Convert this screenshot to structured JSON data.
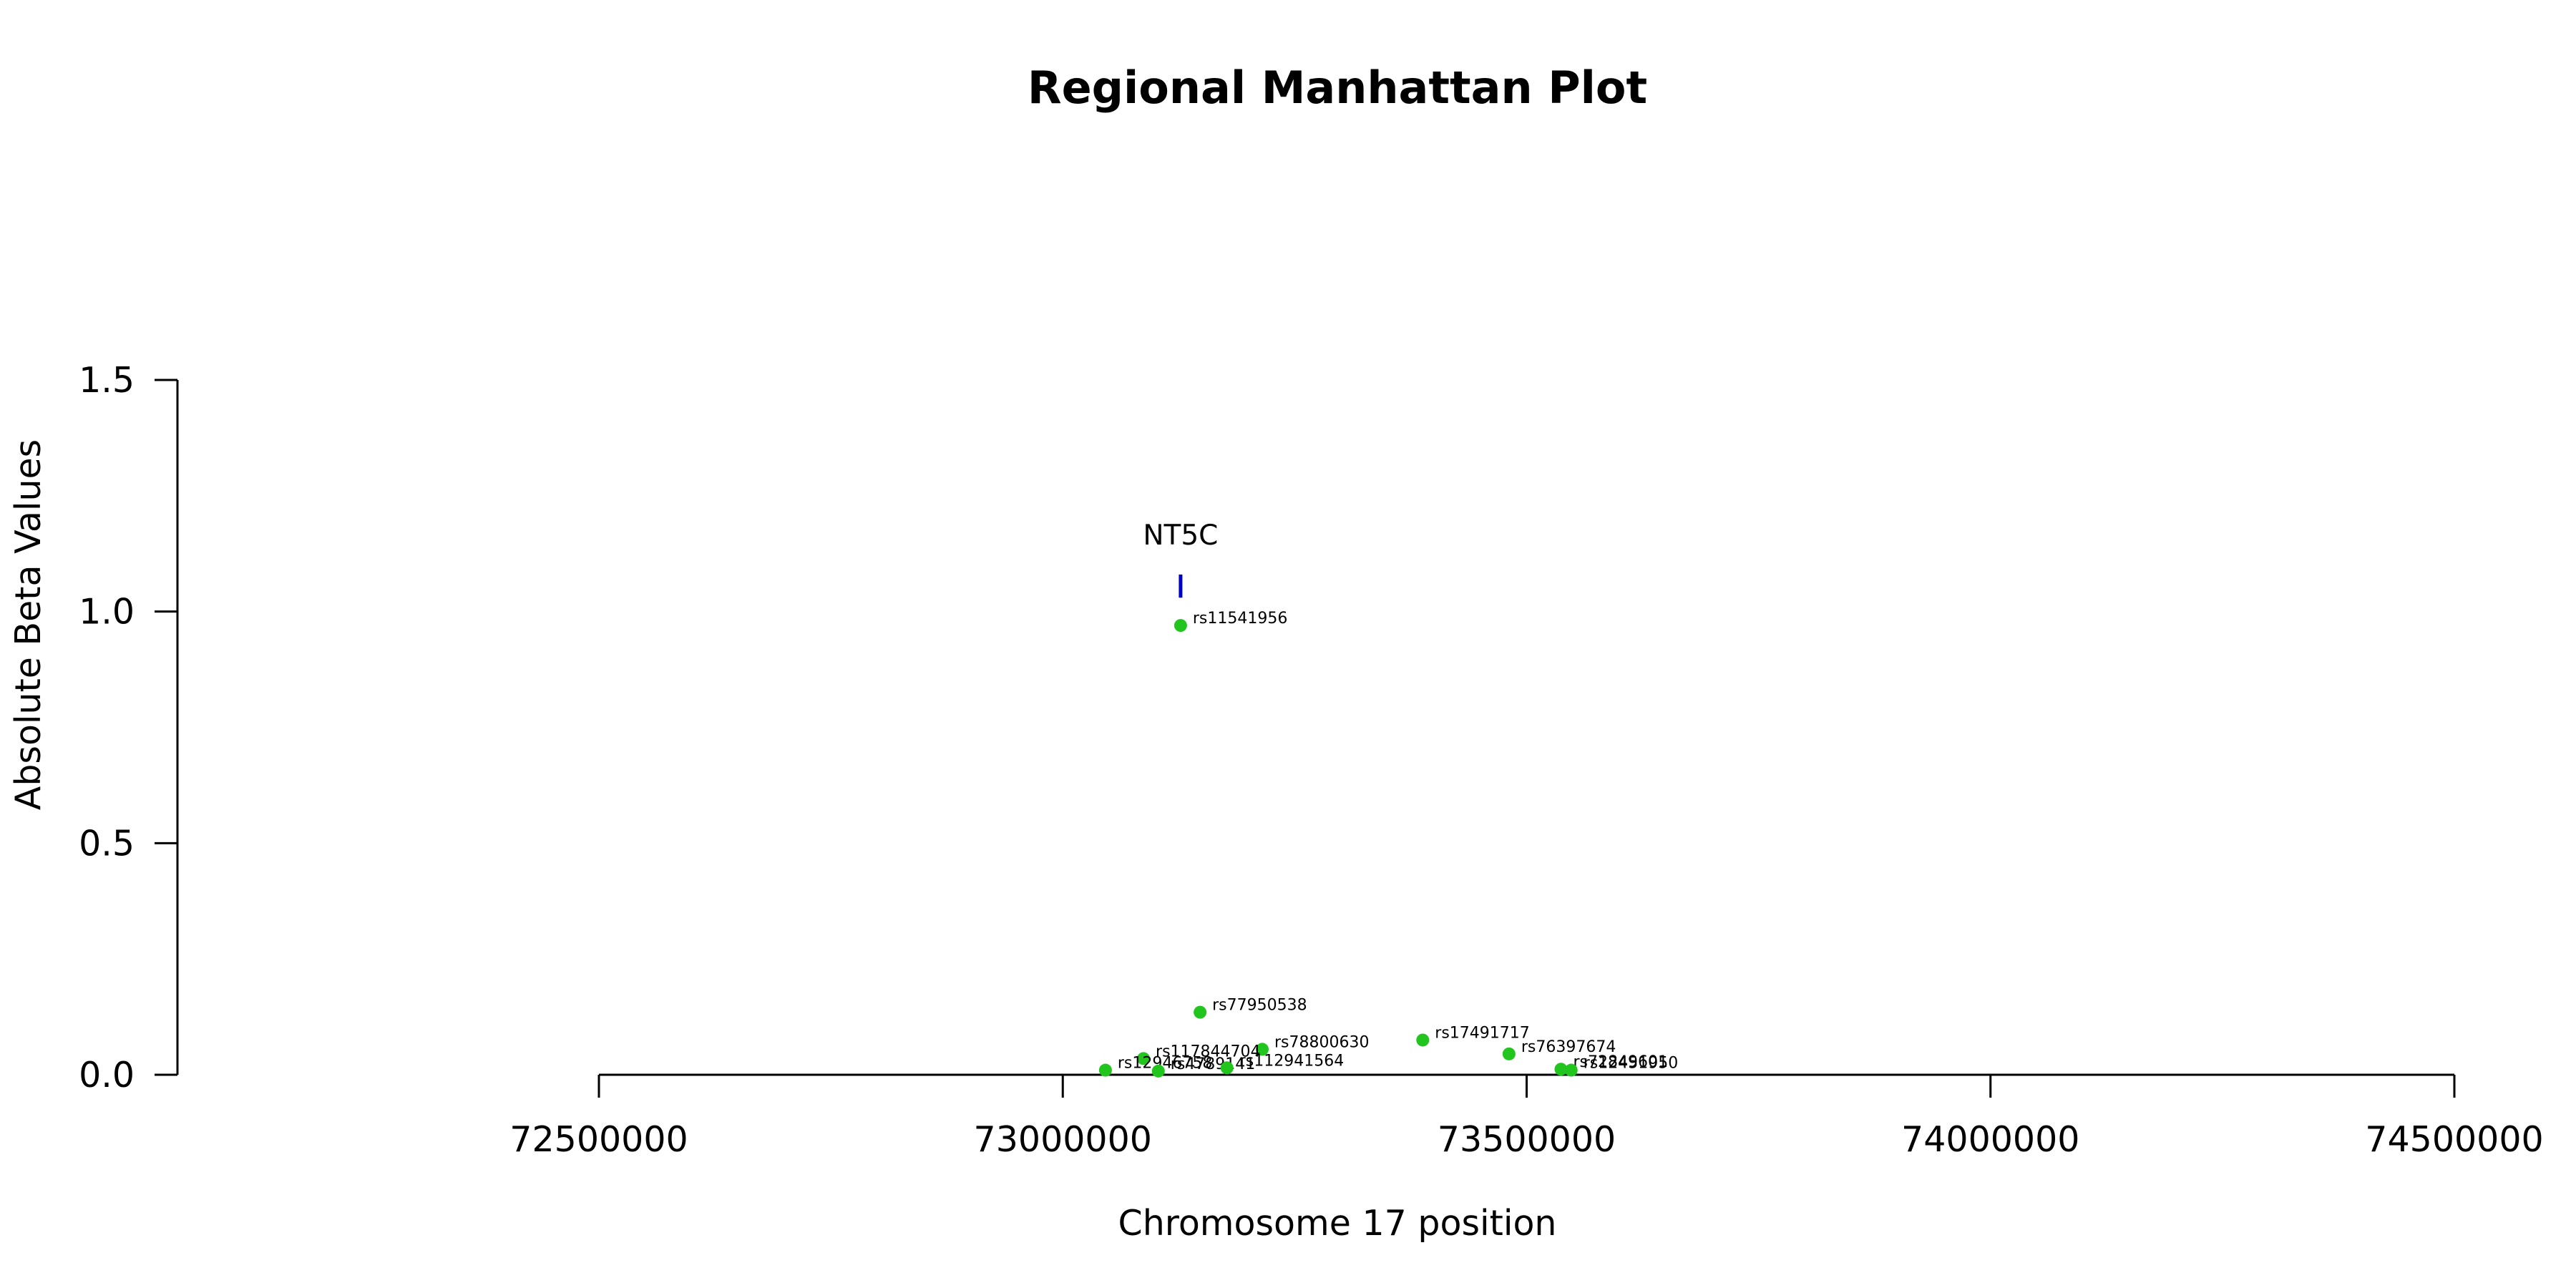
{
  "chart_data": {
    "type": "scatter",
    "title": "Regional Manhattan Plot",
    "xlabel": "Chromosome 17 position",
    "ylabel": "Absolute Beta Values",
    "xlim": [
      72500000,
      74500000
    ],
    "ylim": [
      0,
      1.5
    ],
    "x_ticks": [
      72500000,
      73000000,
      73500000,
      74000000,
      74500000
    ],
    "x_tick_labels": [
      "72500000",
      "73000000",
      "73500000",
      "74000000",
      "74500000"
    ],
    "y_ticks": [
      0,
      0.5,
      1.0,
      1.5
    ],
    "y_tick_labels": [
      "0.0",
      "0.5",
      "1.0",
      "1.5"
    ],
    "point_color": "#22c41e",
    "gene_color": "#0000cc",
    "genes": [
      {
        "name": "NT5C",
        "x": 73127000,
        "y_low": 1.03,
        "y_high": 1.08
      }
    ],
    "points": [
      {
        "label": "rs11541956",
        "x": 73127000,
        "y": 0.97
      },
      {
        "label": "rs77950538",
        "x": 73148000,
        "y": 0.135
      },
      {
        "label": "rs78800630",
        "x": 73215000,
        "y": 0.055
      },
      {
        "label": "rs17491717",
        "x": 73388000,
        "y": 0.075
      },
      {
        "label": "rs76397674",
        "x": 73481000,
        "y": 0.045
      },
      {
        "label": "rs117844704",
        "x": 73087000,
        "y": 0.035
      },
      {
        "label": "rs12946758",
        "x": 73046000,
        "y": 0.01
      },
      {
        "label": "rs4789141",
        "x": 73103000,
        "y": 0.008
      },
      {
        "label": "rs112941564",
        "x": 73177000,
        "y": 0.015
      },
      {
        "label": "rs72849601",
        "x": 73537000,
        "y": 0.012
      },
      {
        "label": "rs12451950",
        "x": 73548000,
        "y": 0.01
      }
    ]
  }
}
